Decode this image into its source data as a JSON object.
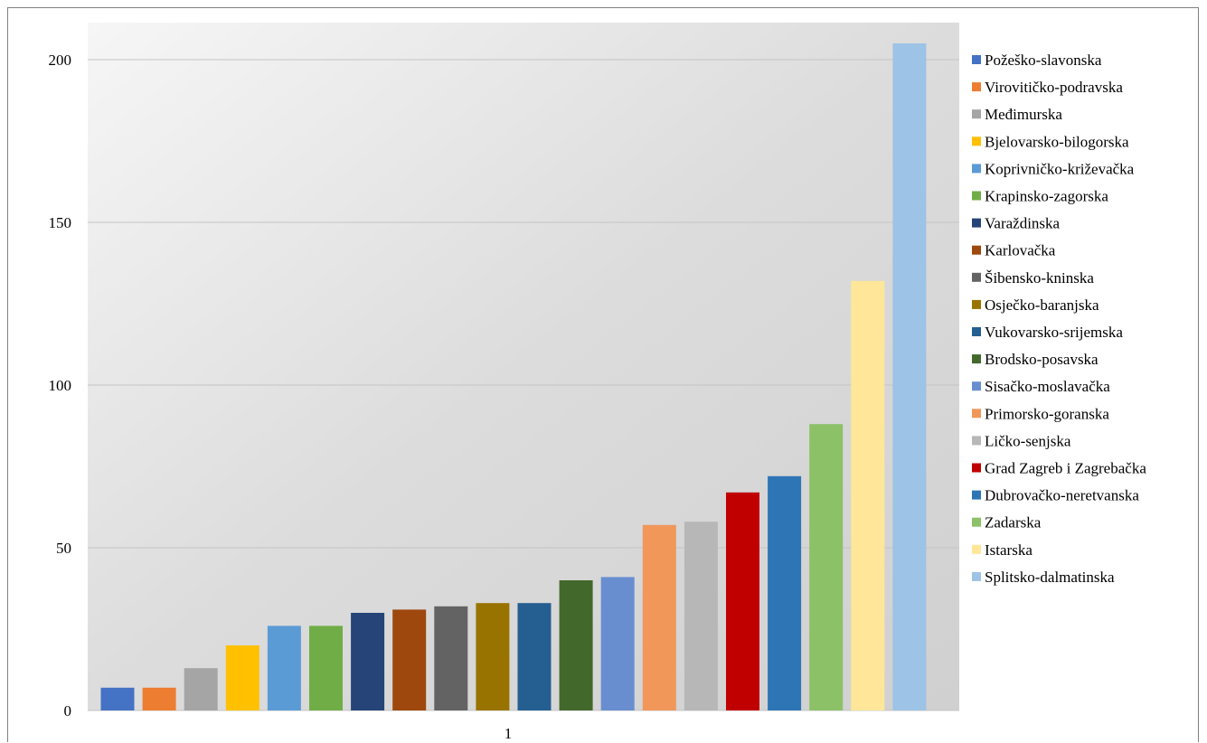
{
  "chart_data": {
    "type": "bar",
    "title": "",
    "xlabel": "",
    "ylabel": "",
    "categories": [
      "1"
    ],
    "ylim": [
      0,
      200
    ],
    "yticks": [
      0,
      50,
      100,
      150,
      200
    ],
    "grid": true,
    "legend_position": "right",
    "series": [
      {
        "name": "Požeško-slavonska",
        "value": 7,
        "color": "#4472C4"
      },
      {
        "name": "Virovitičko-podravska",
        "value": 7,
        "color": "#ED7D31"
      },
      {
        "name": "Međimurska",
        "value": 13,
        "color": "#A5A5A5"
      },
      {
        "name": "Bjelovarsko-bilogorska",
        "value": 20,
        "color": "#FFC000"
      },
      {
        "name": "Koprivničko-križevačka",
        "value": 26,
        "color": "#5B9BD5"
      },
      {
        "name": "Krapinsko-zagorska",
        "value": 26,
        "color": "#70AD47"
      },
      {
        "name": "Varaždinska",
        "value": 30,
        "color": "#264478"
      },
      {
        "name": "Karlovačka",
        "value": 31,
        "color": "#9E480E"
      },
      {
        "name": "Šibensko-kninska",
        "value": 32,
        "color": "#636363"
      },
      {
        "name": "Osječko-baranjska",
        "value": 33,
        "color": "#997300"
      },
      {
        "name": "Vukovarsko-srijemska",
        "value": 33,
        "color": "#255E91"
      },
      {
        "name": "Brodsko-posavska",
        "value": 40,
        "color": "#43682B"
      },
      {
        "name": "Sisačko-moslavačka",
        "value": 41,
        "color": "#698ED0"
      },
      {
        "name": "Primorsko-goranska",
        "value": 57,
        "color": "#F1975A"
      },
      {
        "name": "Ličko-senjska",
        "value": 58,
        "color": "#B7B7B7"
      },
      {
        "name": "Grad Zagreb i Zagrebačka",
        "value": 67,
        "color": "#C00000"
      },
      {
        "name": "Dubrovačko-neretvanska",
        "value": 72,
        "color": "#2E75B6"
      },
      {
        "name": "Zadarska",
        "value": 88,
        "color": "#8CC168"
      },
      {
        "name": "Istarska",
        "value": 132,
        "color": "#FFE699"
      },
      {
        "name": "Splitsko-dalmatinska",
        "value": 205,
        "color": "#9DC3E6"
      }
    ]
  }
}
